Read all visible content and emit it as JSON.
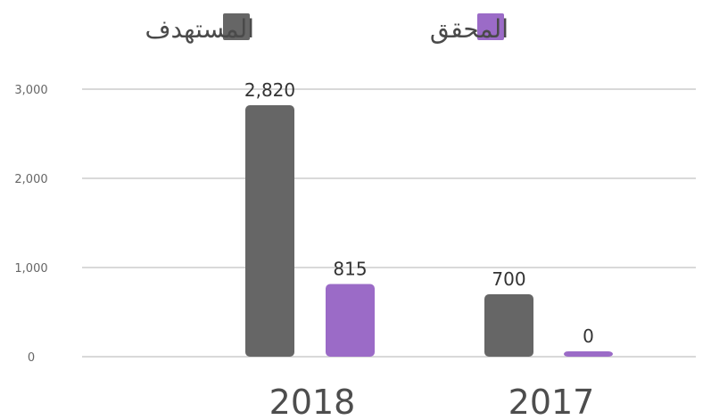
{
  "chart_data": {
    "type": "bar",
    "categories": [
      "2018",
      "2017"
    ],
    "series": [
      {
        "name": "المستهدف",
        "color": "#666666",
        "values": [
          2820,
          700
        ],
        "labels": [
          "2,820",
          "700"
        ]
      },
      {
        "name": "المحقق",
        "color": "#9b6bc7",
        "values": [
          815,
          0
        ],
        "labels": [
          "815",
          "0"
        ]
      }
    ],
    "yticks": [
      {
        "value": 0,
        "label": "0"
      },
      {
        "value": 1000,
        "label": "1,000"
      },
      {
        "value": 2000,
        "label": "2,000"
      },
      {
        "value": 3000,
        "label": "3,000"
      }
    ],
    "ylim": [
      0,
      3000
    ],
    "legend_position": "top",
    "grid": true
  }
}
